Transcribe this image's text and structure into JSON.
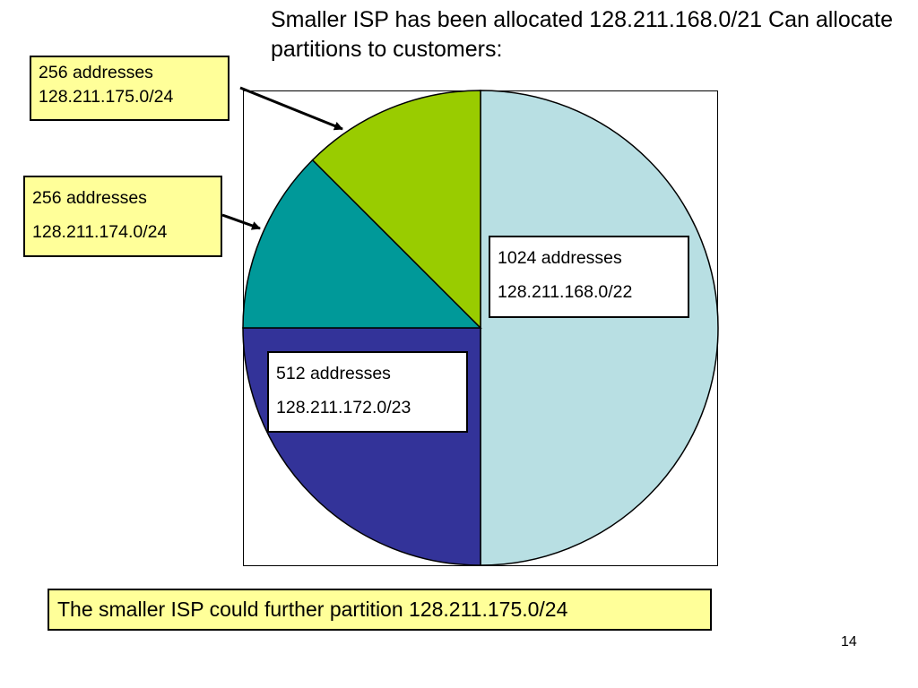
{
  "slide": {
    "title": "Smaller ISP has been allocated 128.211.168.0/21  Can allocate partitions to customers:",
    "footer_note": "The smaller ISP could further partition 128.211.175.0/24",
    "page_number": "14"
  },
  "chart_data": {
    "type": "pie",
    "title": "",
    "start": "top",
    "direction": "clockwise",
    "slices": [
      {
        "value": 1024,
        "color": "#b8dfe3",
        "line1": "1024 addresses",
        "line2": "128.211.168.0/22"
      },
      {
        "value": 512,
        "color": "#333399",
        "line1": "512 addresses",
        "line2": "128.211.172.0/23"
      },
      {
        "value": 256,
        "color": "#009999",
        "line1": "256 addresses",
        "line2": "128.211.174.0/24"
      },
      {
        "value": 256,
        "color": "#99cc00",
        "line1": "256 addresses",
        "line2": "128.211.175.0/24"
      }
    ]
  }
}
